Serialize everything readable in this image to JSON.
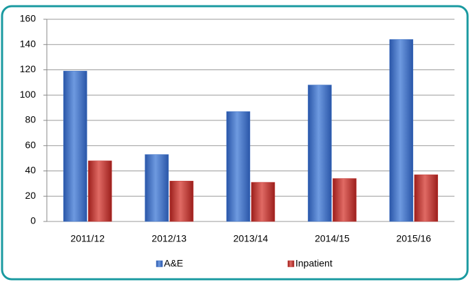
{
  "chart_data": {
    "type": "bar",
    "categories": [
      "2011/12",
      "2012/13",
      "2013/14",
      "2014/15",
      "2015/16"
    ],
    "series": [
      {
        "name": "A&E",
        "color": "#3a6fc4",
        "values": [
          119,
          53,
          87,
          108,
          144
        ]
      },
      {
        "name": "Inpatient",
        "color": "#c0302c",
        "values": [
          48,
          32,
          31,
          34,
          37
        ]
      }
    ],
    "ylim": [
      0,
      160
    ],
    "yticks": [
      0,
      20,
      40,
      60,
      80,
      100,
      120,
      140,
      160
    ],
    "grid": true
  }
}
